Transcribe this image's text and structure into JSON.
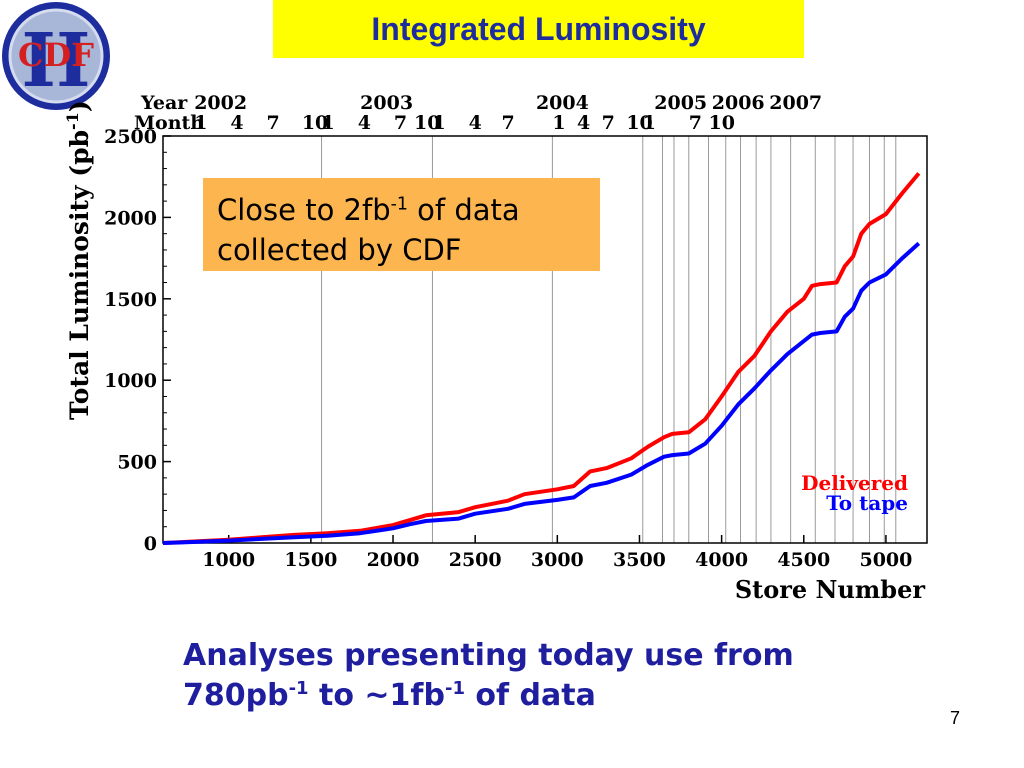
{
  "slide": {
    "title": "Integrated Luminosity",
    "logo_text": "CDF",
    "logo_numeral": "II",
    "callout": {
      "part1": "Close to 2fb",
      "sup": "-1",
      "part2": " of data collected by CDF"
    },
    "bottom": {
      "line1": "Analyses presenting today use from",
      "a": "780pb",
      "sup1": "-1",
      "b": " to ~1fb",
      "sup2": "-1",
      "c": " of data"
    },
    "page_number": "7"
  },
  "colors": {
    "title_bg": "#ffff00",
    "title_text": "#1e2d9e",
    "delivered": "#ff0000",
    "to_tape": "#0000ff",
    "callout_bg": "#fdb550",
    "logo_ring": "#1e2d9e",
    "logo_text": "#d42020"
  },
  "chart_data": {
    "type": "line",
    "xlabel": "Store Number",
    "ylabel": "Total Luminosity (pb",
    "ylabel_sup": "-1",
    "ylabel_close": ")",
    "xlim": [
      600,
      5250
    ],
    "ylim": [
      0,
      2500
    ],
    "xticks": [
      1000,
      1500,
      2000,
      2500,
      3000,
      3500,
      4000,
      4500,
      5000
    ],
    "yticks": [
      0,
      500,
      1000,
      1500,
      2000,
      2500
    ],
    "top_axis": {
      "year_label": "Year",
      "month_label": "Month",
      "years": [
        {
          "label": "2002",
          "x": 790
        },
        {
          "label": "2003",
          "x": 1800
        },
        {
          "label": "2004",
          "x": 2870
        },
        {
          "label": "2005",
          "x": 3590
        },
        {
          "label": "2006",
          "x": 3940
        },
        {
          "label": "2007",
          "x": 4290
        }
      ],
      "months": [
        {
          "label": "1",
          "x": 790
        },
        {
          "label": "4",
          "x": 1010
        },
        {
          "label": "7",
          "x": 1230
        },
        {
          "label": "10",
          "x": 1445
        },
        {
          "label": "1",
          "x": 1565
        },
        {
          "label": "4",
          "x": 1785
        },
        {
          "label": "7",
          "x": 2005
        },
        {
          "label": "10",
          "x": 2128
        },
        {
          "label": "1",
          "x": 2240
        },
        {
          "label": "4",
          "x": 2460
        },
        {
          "label": "7",
          "x": 2660
        },
        {
          "label": "1",
          "x": 2970
        },
        {
          "label": "4",
          "x": 3120
        },
        {
          "label": "7",
          "x": 3270
        },
        {
          "label": "10",
          "x": 3420
        },
        {
          "label": "1",
          "x": 3520
        },
        {
          "label": "7",
          "x": 3800
        },
        {
          "label": "10",
          "x": 3920
        }
      ]
    },
    "vertical_grid": [
      1565,
      2240,
      2970,
      3520,
      3640,
      3710,
      3800,
      3920,
      4025,
      4115,
      4210,
      4300,
      4420,
      4570,
      4690,
      4800,
      4900,
      4990,
      5060
    ],
    "series": [
      {
        "name": "Delivered",
        "color": "#ff0000",
        "x": [
          600,
          700,
          800,
          1000,
          1200,
          1400,
          1600,
          1800,
          2000,
          2100,
          2200,
          2400,
          2500,
          2700,
          2800,
          3000,
          3100,
          3200,
          3300,
          3450,
          3550,
          3650,
          3700,
          3800,
          3900,
          4000,
          4100,
          4200,
          4300,
          4400,
          4500,
          4550,
          4600,
          4700,
          4750,
          4800,
          4850,
          4900,
          5000,
          5100,
          5200
        ],
        "y": [
          0,
          5,
          10,
          20,
          35,
          50,
          60,
          75,
          110,
          140,
          170,
          190,
          220,
          260,
          300,
          330,
          350,
          440,
          460,
          520,
          590,
          650,
          670,
          680,
          760,
          900,
          1050,
          1150,
          1300,
          1420,
          1500,
          1580,
          1590,
          1600,
          1700,
          1760,
          1900,
          1960,
          2020,
          2150,
          2270
        ]
      },
      {
        "name": "To tape",
        "color": "#0000ff",
        "x": [
          600,
          700,
          800,
          1000,
          1200,
          1400,
          1600,
          1800,
          2000,
          2100,
          2200,
          2400,
          2500,
          2700,
          2800,
          3000,
          3100,
          3200,
          3300,
          3450,
          3550,
          3650,
          3700,
          3800,
          3900,
          4000,
          4100,
          4200,
          4300,
          4400,
          4500,
          4550,
          4600,
          4700,
          4750,
          4800,
          4850,
          4900,
          5000,
          5100,
          5200
        ],
        "y": [
          0,
          3,
          7,
          15,
          25,
          35,
          45,
          60,
          90,
          115,
          135,
          150,
          180,
          210,
          240,
          265,
          280,
          350,
          370,
          420,
          480,
          530,
          540,
          550,
          610,
          720,
          850,
          950,
          1060,
          1160,
          1240,
          1280,
          1290,
          1300,
          1390,
          1440,
          1550,
          1600,
          1650,
          1750,
          1840
        ]
      }
    ],
    "legend_position": "bottom-right",
    "grid": "vertical"
  }
}
